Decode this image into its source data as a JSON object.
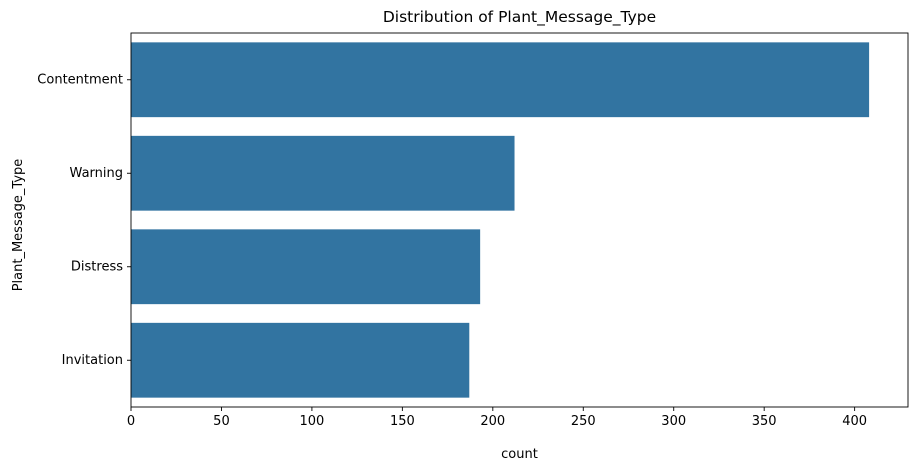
{
  "chart_data": {
    "type": "bar",
    "orientation": "horizontal",
    "title": "Distribution of Plant_Message_Type",
    "xlabel": "count",
    "ylabel": "Plant_Message_Type",
    "categories": [
      "Contentment",
      "Warning",
      "Distress",
      "Invitation"
    ],
    "values": [
      408,
      212,
      193,
      187
    ],
    "xlim": [
      0,
      429.5
    ],
    "xticks": [
      0,
      50,
      100,
      150,
      200,
      250,
      300,
      350,
      400
    ],
    "grid": false,
    "bar_color": "#3274a1"
  }
}
